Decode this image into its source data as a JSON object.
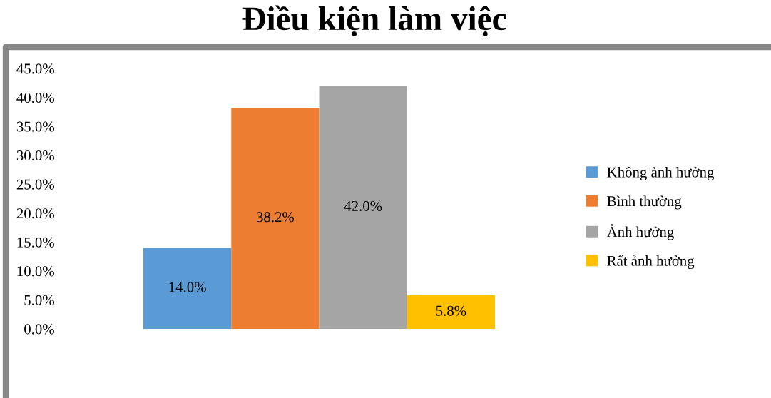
{
  "chart_data": {
    "type": "bar",
    "title": "Điều kiện làm việc",
    "categories": [
      null
    ],
    "series": [
      {
        "name": "Không ảnh hưởng",
        "color": "#5b9bd5",
        "values": [
          14.0
        ],
        "value_labels": [
          "14.0%"
        ]
      },
      {
        "name": "Bình thường",
        "color": "#ed7d31",
        "values": [
          38.2
        ],
        "value_labels": [
          "38.2%"
        ]
      },
      {
        "name": "Ảnh hưởng",
        "color": "#a5a5a5",
        "values": [
          42.0
        ],
        "value_labels": [
          "42.0%"
        ]
      },
      {
        "name": "Rất ảnh hưởng",
        "color": "#ffc000",
        "values": [
          5.8
        ],
        "value_labels": [
          "5.8%"
        ]
      }
    ],
    "ylim": [
      0,
      45
    ],
    "yticks": [
      {
        "value": 0,
        "label": "0.0%"
      },
      {
        "value": 5,
        "label": "5.0%"
      },
      {
        "value": 10,
        "label": "10.0%"
      },
      {
        "value": 15,
        "label": "15.0%"
      },
      {
        "value": 20,
        "label": "20.0%"
      },
      {
        "value": 25,
        "label": "25.0%"
      },
      {
        "value": 30,
        "label": "30.0%"
      },
      {
        "value": 35,
        "label": "35.0%"
      },
      {
        "value": 40,
        "label": "40.0%"
      },
      {
        "value": 45,
        "label": "45.0%"
      }
    ],
    "tick_labels": "y",
    "legend": "right"
  }
}
